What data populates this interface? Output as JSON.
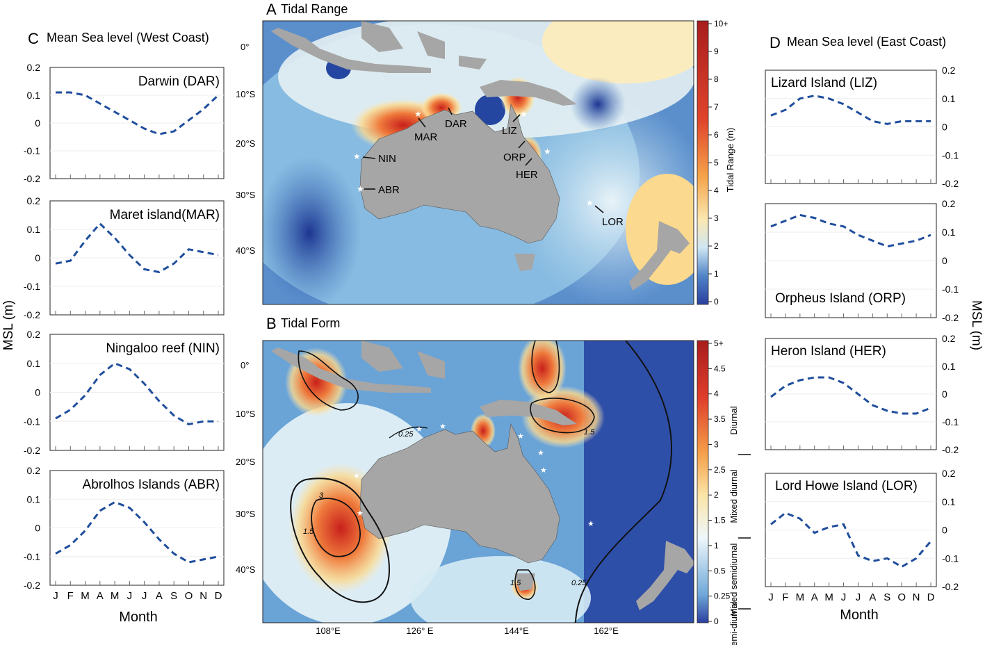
{
  "panels": {
    "A": {
      "letter": "A",
      "title": "Tidal Range"
    },
    "B": {
      "letter": "B",
      "title": "Tidal Form"
    },
    "C": {
      "letter": "C",
      "title": "Mean Sea level (West Coast)"
    },
    "D": {
      "letter": "D",
      "title": "Mean Sea level (East Coast)"
    }
  },
  "shared_axes": {
    "ylabel": "MSL (m)",
    "xlabel": "Month",
    "months": [
      "J",
      "F",
      "M",
      "A",
      "M",
      "J",
      "J",
      "A",
      "S",
      "O",
      "N",
      "D"
    ],
    "yticks": [
      "0.2",
      "0.1",
      "0",
      "-0.1",
      "-0.2"
    ]
  },
  "chart_data": [
    {
      "type": "line",
      "panel": "C",
      "title": "Darwin (DAR)",
      "ylabel": "MSL (m)",
      "ylim": [
        -0.2,
        0.2
      ],
      "categories": [
        "J",
        "F",
        "M",
        "A",
        "M",
        "J",
        "J",
        "A",
        "S",
        "O",
        "N",
        "D"
      ],
      "values": [
        0.11,
        0.11,
        0.1,
        0.07,
        0.04,
        0.01,
        -0.02,
        -0.04,
        -0.03,
        0.01,
        0.05,
        0.1
      ]
    },
    {
      "type": "line",
      "panel": "C",
      "title": "Maret island(MAR)",
      "ylabel": "MSL (m)",
      "ylim": [
        -0.2,
        0.2
      ],
      "categories": [
        "J",
        "F",
        "M",
        "A",
        "M",
        "J",
        "J",
        "A",
        "S",
        "O",
        "N",
        "D"
      ],
      "values": [
        -0.02,
        -0.01,
        0.06,
        0.12,
        0.07,
        0.01,
        -0.04,
        -0.05,
        -0.02,
        0.03,
        0.02,
        0.01
      ]
    },
    {
      "type": "line",
      "panel": "C",
      "title": "Ningaloo reef (NIN)",
      "ylabel": "MSL (m)",
      "ylim": [
        -0.2,
        0.2
      ],
      "categories": [
        "J",
        "F",
        "M",
        "A",
        "M",
        "J",
        "J",
        "A",
        "S",
        "O",
        "N",
        "D"
      ],
      "values": [
        -0.09,
        -0.06,
        -0.01,
        0.06,
        0.1,
        0.08,
        0.03,
        -0.03,
        -0.08,
        -0.11,
        -0.1,
        -0.1
      ]
    },
    {
      "type": "line",
      "panel": "C",
      "title": "Abrolhos Islands (ABR)",
      "ylabel": "MSL (m)",
      "ylim": [
        -0.2,
        0.2
      ],
      "categories": [
        "J",
        "F",
        "M",
        "A",
        "M",
        "J",
        "J",
        "A",
        "S",
        "O",
        "N",
        "D"
      ],
      "values": [
        -0.09,
        -0.06,
        -0.01,
        0.06,
        0.09,
        0.07,
        0.02,
        -0.04,
        -0.09,
        -0.12,
        -0.11,
        -0.1
      ]
    },
    {
      "type": "line",
      "panel": "D",
      "title": "Lizard Island (LIZ)",
      "ylabel": "MSL (m)",
      "ylim": [
        -0.2,
        0.2
      ],
      "categories": [
        "J",
        "F",
        "M",
        "A",
        "M",
        "J",
        "J",
        "A",
        "S",
        "O",
        "N",
        "D"
      ],
      "values": [
        0.04,
        0.06,
        0.1,
        0.11,
        0.1,
        0.08,
        0.05,
        0.02,
        0.01,
        0.02,
        0.02,
        0.02
      ]
    },
    {
      "type": "line",
      "panel": "D",
      "title": "Orpheus Island (ORP)",
      "ylabel": "MSL (m)",
      "ylim": [
        -0.2,
        0.2
      ],
      "categories": [
        "J",
        "F",
        "M",
        "A",
        "M",
        "J",
        "J",
        "A",
        "S",
        "O",
        "N",
        "D"
      ],
      "values": [
        0.12,
        0.14,
        0.16,
        0.15,
        0.13,
        0.12,
        0.09,
        0.07,
        0.05,
        0.06,
        0.07,
        0.09
      ]
    },
    {
      "type": "line",
      "panel": "D",
      "title": "Heron Island (HER)",
      "ylabel": "MSL (m)",
      "ylim": [
        -0.2,
        0.2
      ],
      "categories": [
        "J",
        "F",
        "M",
        "A",
        "M",
        "J",
        "J",
        "A",
        "S",
        "O",
        "N",
        "D"
      ],
      "values": [
        -0.01,
        0.03,
        0.05,
        0.06,
        0.06,
        0.04,
        0.0,
        -0.04,
        -0.06,
        -0.07,
        -0.07,
        -0.05
      ]
    },
    {
      "type": "line",
      "panel": "D",
      "title": "Lord Howe Island (LOR)",
      "ylabel": "MSL (m)",
      "ylim": [
        -0.2,
        0.2
      ],
      "categories": [
        "J",
        "F",
        "M",
        "A",
        "M",
        "J",
        "J",
        "A",
        "S",
        "O",
        "N",
        "D"
      ],
      "values": [
        0.02,
        0.06,
        0.04,
        -0.01,
        0.01,
        0.02,
        -0.09,
        -0.11,
        -0.1,
        -0.13,
        -0.1,
        -0.04
      ]
    }
  ],
  "maps": {
    "lat_labels": [
      "0°",
      "10°S",
      "20°S",
      "30°S",
      "40°S"
    ],
    "lon_labels": [
      "108°E",
      "126° E",
      "144°E",
      "162°E"
    ],
    "range_colorbar": {
      "ticks": [
        "10+",
        "9",
        "8",
        "7",
        "6",
        "5",
        "4",
        "3",
        "2",
        "1",
        "0"
      ],
      "label": "Tidal Range (m)"
    },
    "form_colorbar": {
      "ticks": [
        "5+",
        "4.5",
        "4",
        "3.5",
        "3",
        "2.5",
        "2",
        "1.5",
        "1",
        "0.5",
        "0.25",
        "0"
      ],
      "categories": [
        "Diurnal",
        "Mixed diurnal",
        "Mixed semidiurnal",
        "Semi-diurnal"
      ]
    },
    "sites": [
      "MAR",
      "DAR",
      "LIZ",
      "NIN",
      "ORP",
      "HER",
      "ABR",
      "LOR"
    ],
    "contour_labels": [
      "0.25",
      "3",
      "1.5",
      "1.5",
      "1.5",
      "0.25"
    ],
    "colors": {
      "ocean_low": "#2c52a8",
      "ocean_mid": "#8fc3e4",
      "high": "#d62a1f",
      "land": "#a6a6a6",
      "line": "#1f4e9c"
    }
  }
}
